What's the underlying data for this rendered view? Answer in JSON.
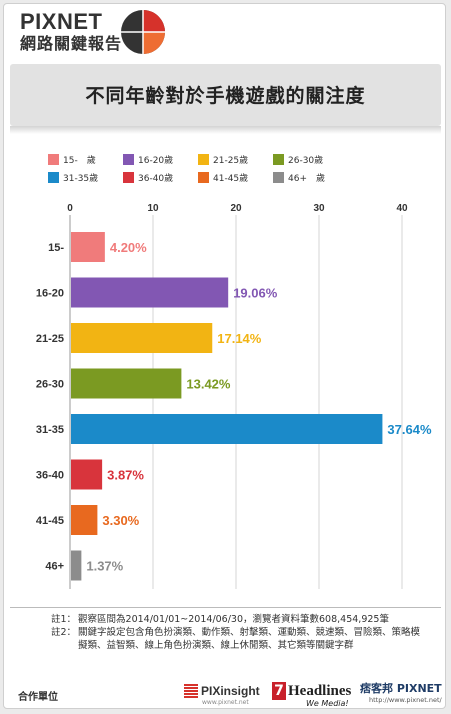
{
  "header": {
    "brand": "PIXNET",
    "subtitle": "網路關鍵報告",
    "logo_icon": "pie-logo-icon",
    "logo_colors": [
      "#333333",
      "#d6322b",
      "#ee6d33"
    ]
  },
  "chart_data": {
    "type": "bar",
    "orientation": "horizontal",
    "title": "不同年齡對於手機遊戲的關注度",
    "categories": [
      "15-",
      "16-20",
      "21-25",
      "26-30",
      "31-35",
      "36-40",
      "41-45",
      "46+"
    ],
    "values": [
      4.2,
      19.06,
      17.14,
      13.42,
      37.64,
      3.87,
      3.3,
      1.37
    ],
    "value_labels": [
      "4.20%",
      "19.06%",
      "17.14%",
      "13.42%",
      "37.64%",
      "3.87%",
      "3.30%",
      "1.37%"
    ],
    "colors": [
      "#f07b7b",
      "#8257b3",
      "#f2b413",
      "#7b9a22",
      "#1b8ac9",
      "#d8343c",
      "#e8691f",
      "#8c8c8c"
    ],
    "xlim": [
      0,
      40
    ],
    "xticks": [
      0,
      10,
      20,
      30,
      40
    ],
    "grid": true,
    "legend_position": "top",
    "legend": [
      "15-　歲",
      "16-20歲",
      "21-25歲",
      "26-30歲",
      "31-35歲",
      "36-40歲",
      "41-45歲",
      "46+　歲"
    ]
  },
  "notes": [
    {
      "tag": "註1：",
      "text": "觀察區間為2014/01/01~2014/06/30，瀏覽者資料筆數608,454,925筆"
    },
    {
      "tag": "註2：",
      "text": "關鍵字設定包含角色扮演類、動作類、射擊類、運動類、競速類、冒險類、策略模擬類、益智類、線上角色扮演類、線上休閒類、其它類等關鍵字群"
    }
  ],
  "footer": {
    "partner_label": "合作單位",
    "pixinsight": "PIXinsight",
    "pixinsight_url": "www.pixnet.net",
    "headlines": "Headlines",
    "headlines_number": "7",
    "headlines_tag": "We Media!",
    "pixnet_name": "痞客邦 PIXNET",
    "pixnet_url": "http://www.pixnet.net/"
  }
}
